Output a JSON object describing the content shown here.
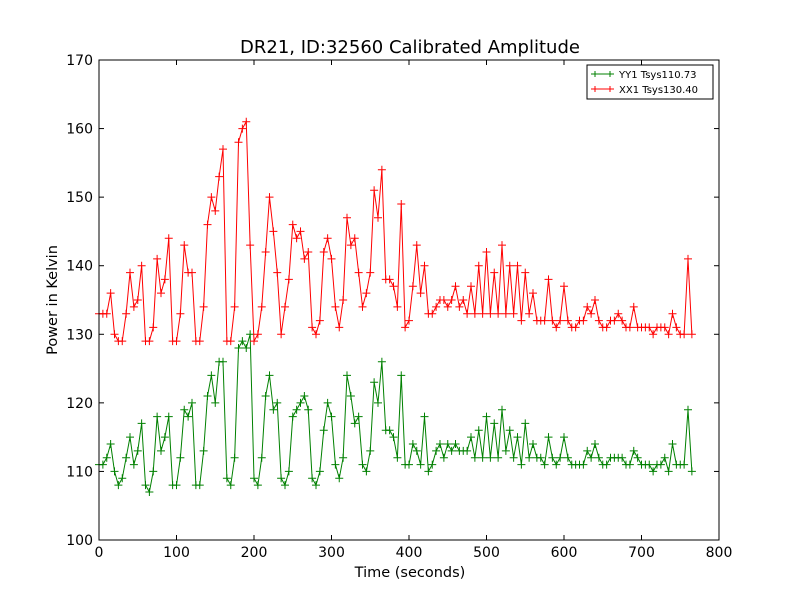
{
  "chart_data": {
    "type": "line",
    "title": "DR21, ID:32560 Calibrated Amplitude",
    "xlabel": "Time (seconds)",
    "ylabel": "Power in Kelvin",
    "xlim": [
      0,
      800
    ],
    "ylim": [
      100,
      170
    ],
    "xticks": [
      "0",
      "100",
      "200",
      "300",
      "400",
      "500",
      "600",
      "700",
      "800"
    ],
    "yticks": [
      "100",
      "110",
      "120",
      "130",
      "140",
      "150",
      "160",
      "170"
    ],
    "grid": false,
    "legend_position": "top-right",
    "marker": "+",
    "series": [
      {
        "name": "YY1 Tsys110.73",
        "color": "#008000",
        "x": [
          0,
          5,
          10,
          15,
          20,
          25,
          30,
          35,
          40,
          45,
          50,
          55,
          60,
          65,
          70,
          75,
          80,
          85,
          90,
          95,
          100,
          105,
          110,
          115,
          120,
          125,
          130,
          135,
          140,
          145,
          150,
          155,
          160,
          165,
          170,
          175,
          180,
          185,
          190,
          195,
          200,
          205,
          210,
          215,
          220,
          225,
          230,
          235,
          240,
          245,
          250,
          255,
          260,
          265,
          270,
          275,
          280,
          285,
          290,
          295,
          300,
          305,
          310,
          315,
          320,
          325,
          330,
          335,
          340,
          345,
          350,
          355,
          360,
          365,
          370,
          375,
          380,
          385,
          390,
          395,
          400,
          405,
          410,
          415,
          420,
          425,
          430,
          435,
          440,
          445,
          450,
          455,
          460,
          465,
          470,
          475,
          480,
          485,
          490,
          495,
          500,
          505,
          510,
          515,
          520,
          525,
          530,
          535,
          540,
          545,
          550,
          555,
          560,
          565,
          570,
          575,
          580,
          585,
          590,
          595,
          600,
          605,
          610,
          615,
          620,
          625,
          630,
          635,
          640,
          645,
          650,
          655,
          660,
          665,
          670,
          675,
          680,
          685,
          690,
          695,
          700,
          705,
          710,
          715,
          720,
          725,
          730,
          735,
          740,
          745,
          750,
          755,
          760,
          765
        ],
        "y": [
          111,
          111,
          112,
          114,
          110,
          108,
          109,
          112,
          115,
          111,
          113,
          117,
          108,
          107,
          110,
          118,
          113,
          115,
          118,
          108,
          108,
          112,
          119,
          118,
          120,
          108,
          108,
          113,
          121,
          124,
          120,
          126,
          126,
          109,
          108,
          112,
          128,
          129,
          128,
          130,
          109,
          108,
          112,
          121,
          124,
          119,
          120,
          109,
          108,
          110,
          118,
          119,
          120,
          121,
          119,
          109,
          108,
          110,
          116,
          120,
          118,
          111,
          109,
          112,
          124,
          121,
          117,
          118,
          111,
          110,
          113,
          123,
          120,
          126,
          116,
          116,
          115,
          112,
          124,
          111,
          111,
          114,
          113,
          111,
          118,
          110,
          111,
          113,
          114,
          112,
          114,
          113,
          114,
          113,
          113,
          113,
          115,
          112,
          116,
          112,
          118,
          112,
          117,
          112,
          119,
          113,
          116,
          112,
          115,
          111,
          117,
          112,
          114,
          112,
          112,
          111,
          115,
          112,
          111,
          112,
          115,
          112,
          111,
          111,
          111,
          111,
          113,
          112,
          114,
          112,
          111,
          111,
          112,
          112,
          112,
          112,
          111,
          111,
          113,
          112,
          111,
          111,
          111,
          110,
          111,
          111,
          112,
          110,
          114,
          111,
          111,
          111,
          119,
          110
        ]
      },
      {
        "name": "XX1 Tsys130.40",
        "color": "#ff0000",
        "x": [
          0,
          5,
          10,
          15,
          20,
          25,
          30,
          35,
          40,
          45,
          50,
          55,
          60,
          65,
          70,
          75,
          80,
          85,
          90,
          95,
          100,
          105,
          110,
          115,
          120,
          125,
          130,
          135,
          140,
          145,
          150,
          155,
          160,
          165,
          170,
          175,
          180,
          185,
          190,
          195,
          200,
          205,
          210,
          215,
          220,
          225,
          230,
          235,
          240,
          245,
          250,
          255,
          260,
          265,
          270,
          275,
          280,
          285,
          290,
          295,
          300,
          305,
          310,
          315,
          320,
          325,
          330,
          335,
          340,
          345,
          350,
          355,
          360,
          365,
          370,
          375,
          380,
          385,
          390,
          395,
          400,
          405,
          410,
          415,
          420,
          425,
          430,
          435,
          440,
          445,
          450,
          455,
          460,
          465,
          470,
          475,
          480,
          485,
          490,
          495,
          500,
          505,
          510,
          515,
          520,
          525,
          530,
          535,
          540,
          545,
          550,
          555,
          560,
          565,
          570,
          575,
          580,
          585,
          590,
          595,
          600,
          605,
          610,
          615,
          620,
          625,
          630,
          635,
          640,
          645,
          650,
          655,
          660,
          665,
          670,
          675,
          680,
          685,
          690,
          695,
          700,
          705,
          710,
          715,
          720,
          725,
          730,
          735,
          740,
          745,
          750,
          755,
          760,
          765
        ],
        "y": [
          133,
          133,
          133,
          136,
          130,
          129,
          129,
          133,
          139,
          134,
          135,
          140,
          129,
          129,
          131,
          141,
          136,
          138,
          144,
          129,
          129,
          133,
          143,
          139,
          139,
          129,
          129,
          134,
          146,
          150,
          148,
          153,
          157,
          129,
          129,
          134,
          158,
          160,
          161,
          143,
          129,
          130,
          134,
          142,
          150,
          145,
          139,
          130,
          134,
          138,
          146,
          144,
          145,
          141,
          142,
          131,
          130,
          132,
          142,
          144,
          141,
          134,
          131,
          135,
          147,
          143,
          144,
          139,
          134,
          136,
          139,
          151,
          147,
          154,
          138,
          138,
          137,
          134,
          149,
          131,
          132,
          137,
          143,
          136,
          140,
          133,
          133,
          134,
          135,
          135,
          134,
          135,
          137,
          134,
          135,
          133,
          137,
          133,
          140,
          133,
          142,
          133,
          139,
          133,
          143,
          133,
          140,
          133,
          140,
          132,
          139,
          133,
          136,
          132,
          132,
          132,
          138,
          132,
          131,
          132,
          137,
          132,
          131,
          131,
          132,
          132,
          134,
          133,
          135,
          132,
          131,
          131,
          132,
          132,
          133,
          132,
          131,
          131,
          134,
          131,
          131,
          131,
          131,
          130,
          131,
          131,
          131,
          130,
          133,
          131,
          130,
          130,
          141,
          130
        ]
      }
    ]
  }
}
